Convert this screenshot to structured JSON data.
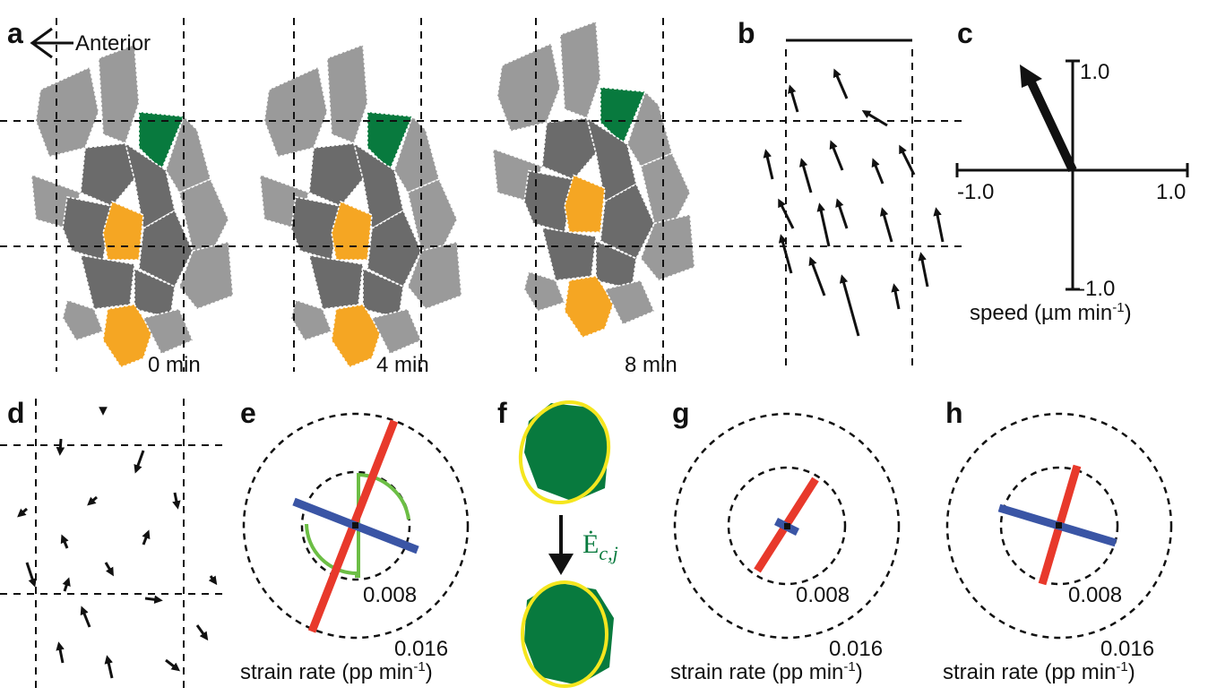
{
  "panels": [
    {
      "label": "a",
      "annotation": "Anterior",
      "times": [
        "0 min",
        "4 min",
        "8 min"
      ]
    },
    {
      "label": "b"
    },
    {
      "label": "c",
      "ticks": [
        "1.0",
        "-1.0",
        "1.0",
        "-1.0"
      ],
      "axis_label": {
        "text": "speed (µm min",
        "superscript": "-1",
        "close": ")"
      }
    },
    {
      "label": "d"
    },
    {
      "label": "e",
      "rings": [
        "0.008",
        "0.016"
      ],
      "axis_label": {
        "text": "strain rate (pp min",
        "superscript": "-1",
        "close": ")"
      }
    },
    {
      "label": "f",
      "symbol": {
        "text": "Ė",
        "subscript": "c,j"
      }
    },
    {
      "label": "g",
      "rings": [
        "0.008",
        "0.016"
      ],
      "axis_label": {
        "text": "strain rate (pp min",
        "superscript": "-1",
        "close": ")"
      }
    },
    {
      "label": "h",
      "rings": [
        "0.008",
        "0.016"
      ],
      "axis_label": {
        "text": "strain rate (pp min",
        "superscript": "-1",
        "close": ")"
      }
    }
  ]
}
